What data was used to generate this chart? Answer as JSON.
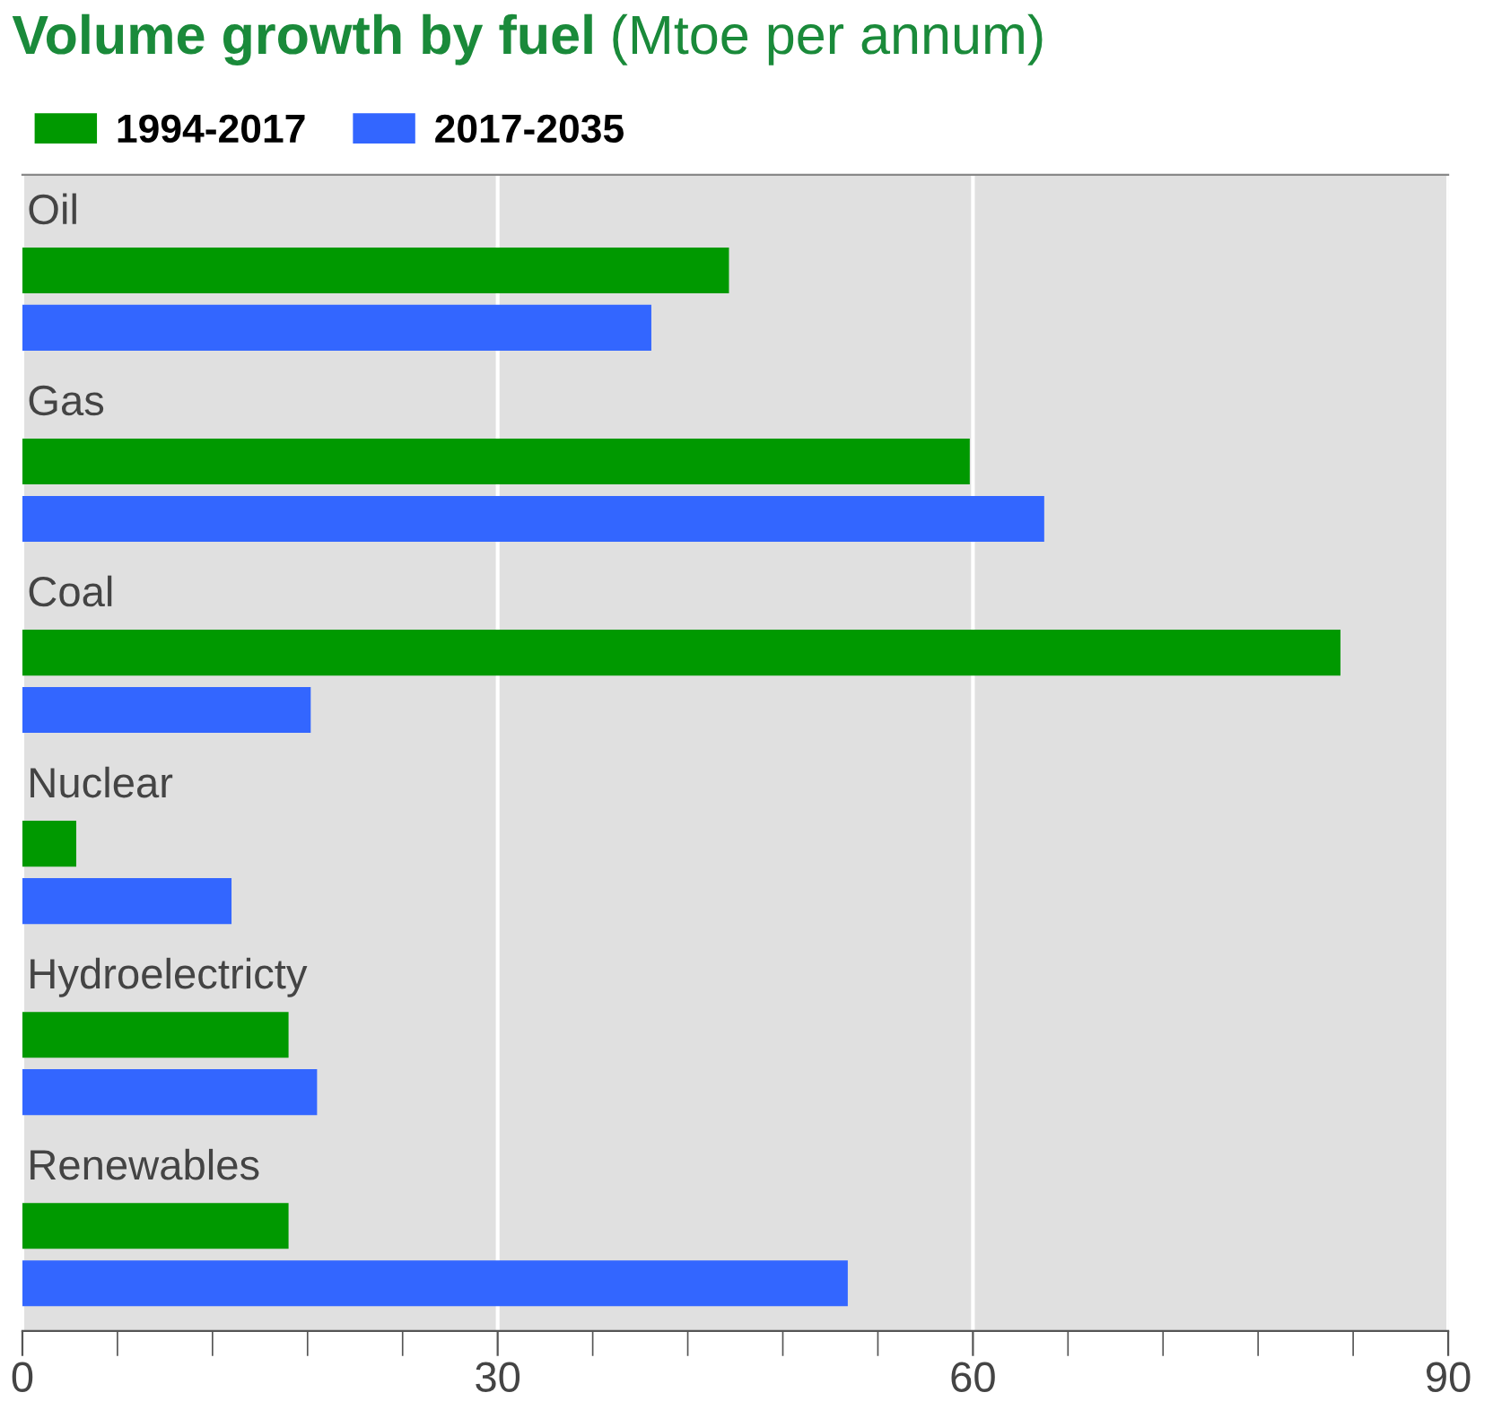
{
  "chart_data": {
    "type": "bar",
    "orientation": "horizontal",
    "title": "Volume growth by fuel",
    "subtitle": "(Mtoe per annum)",
    "categories": [
      "Oil",
      "Gas",
      "Coal",
      "Nuclear",
      "Hydroelectricty",
      "Renewables"
    ],
    "series": [
      {
        "name": "1994-2017",
        "color": "#009900",
        "values": [
          44.6,
          59.8,
          83.2,
          3.4,
          16.8,
          16.8
        ]
      },
      {
        "name": "2017-2035",
        "color": "#3366ff",
        "values": [
          39.7,
          64.5,
          18.2,
          13.2,
          18.6,
          52.1
        ]
      }
    ],
    "xlim": [
      0,
      90
    ],
    "xticks": [
      0,
      {
        "value": 6,
        "label": null
      },
      {
        "value": 12,
        "label": null
      },
      {
        "value": 18,
        "label": null
      },
      {
        "value": 24,
        "label": null
      },
      30,
      {
        "value": 36,
        "label": null
      },
      {
        "value": 42,
        "label": null
      },
      {
        "value": 48,
        "label": null
      },
      {
        "value": 54,
        "label": null
      },
      60,
      {
        "value": 66,
        "label": null
      },
      {
        "value": 72,
        "label": null
      },
      {
        "value": 78,
        "label": null
      },
      {
        "value": 84,
        "label": null
      },
      90
    ],
    "grid": "x",
    "legend": "top left"
  }
}
